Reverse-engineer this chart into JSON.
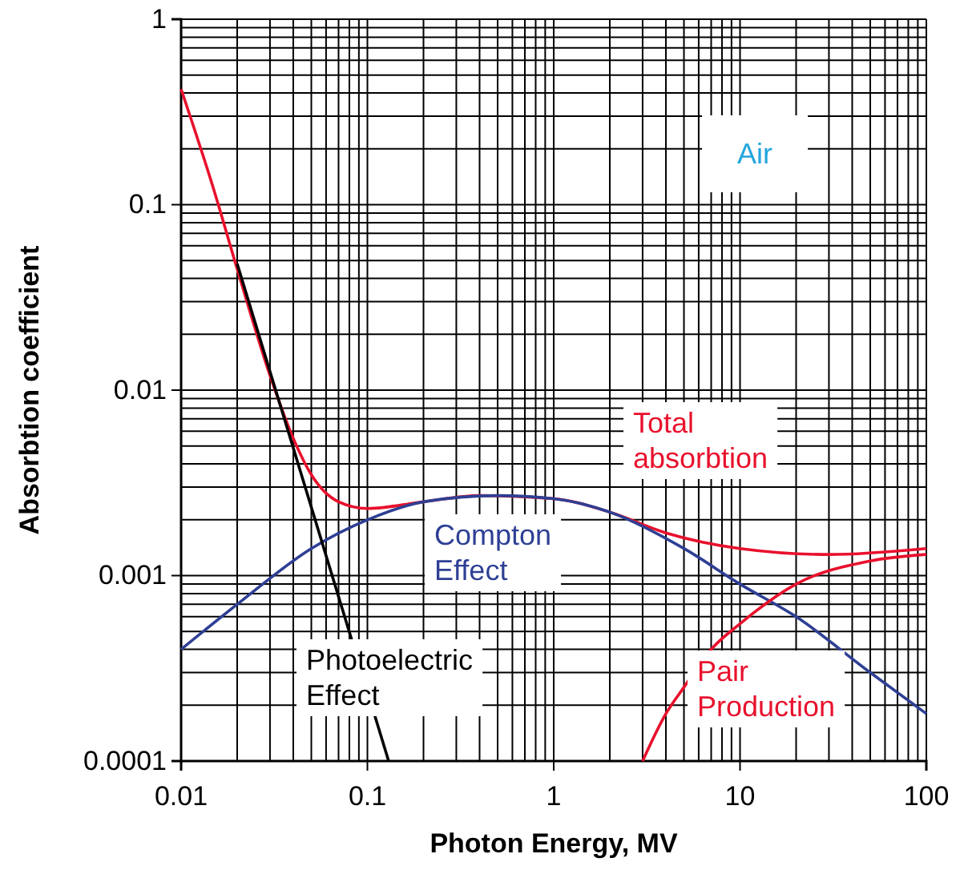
{
  "chart_data": {
    "type": "line",
    "xlabel": "Photon Energy, MV",
    "ylabel": "Absorbtion coefficient",
    "log": "xy",
    "grid": true,
    "xlim": [
      0.01,
      100
    ],
    "ylim": [
      0.0001,
      1
    ],
    "xticks": [
      0.01,
      0.1,
      1,
      10,
      100
    ],
    "yticks": [
      0.0001,
      0.001,
      0.01,
      0.1,
      1
    ],
    "annotations": [
      "Air"
    ],
    "series": [
      {
        "name": "Total absorbtion",
        "color": "#e8112d",
        "x": [
          0.01,
          0.015,
          0.02,
          0.03,
          0.04,
          0.05,
          0.07,
          0.1,
          0.2,
          0.4,
          1,
          2,
          4,
          10,
          30,
          100
        ],
        "values": [
          0.42,
          0.12,
          0.045,
          0.012,
          0.0055,
          0.0035,
          0.0025,
          0.0023,
          0.0025,
          0.0027,
          0.0026,
          0.0022,
          0.0017,
          0.0014,
          0.0013,
          0.0014
        ]
      },
      {
        "name": "Compton Effect",
        "color": "#2e3f94",
        "x": [
          0.01,
          0.02,
          0.05,
          0.1,
          0.2,
          0.5,
          1,
          2,
          5,
          10,
          20,
          50,
          100
        ],
        "values": [
          0.0004,
          0.0007,
          0.0014,
          0.002,
          0.0025,
          0.0027,
          0.0026,
          0.0022,
          0.0014,
          0.0009,
          0.0006,
          0.0003,
          0.00018
        ]
      },
      {
        "name": "Photoelectric Effect",
        "color": "#000000",
        "x": [
          0.02,
          0.13
        ],
        "values": [
          0.048,
          0.0001
        ]
      },
      {
        "name": "Pair Production",
        "color": "#e8112d",
        "x": [
          3,
          4,
          5,
          7,
          10,
          20,
          50,
          100
        ],
        "values": [
          0.0001,
          0.00018,
          0.00025,
          0.0004,
          0.00055,
          0.0009,
          0.0012,
          0.0013
        ]
      }
    ]
  }
}
